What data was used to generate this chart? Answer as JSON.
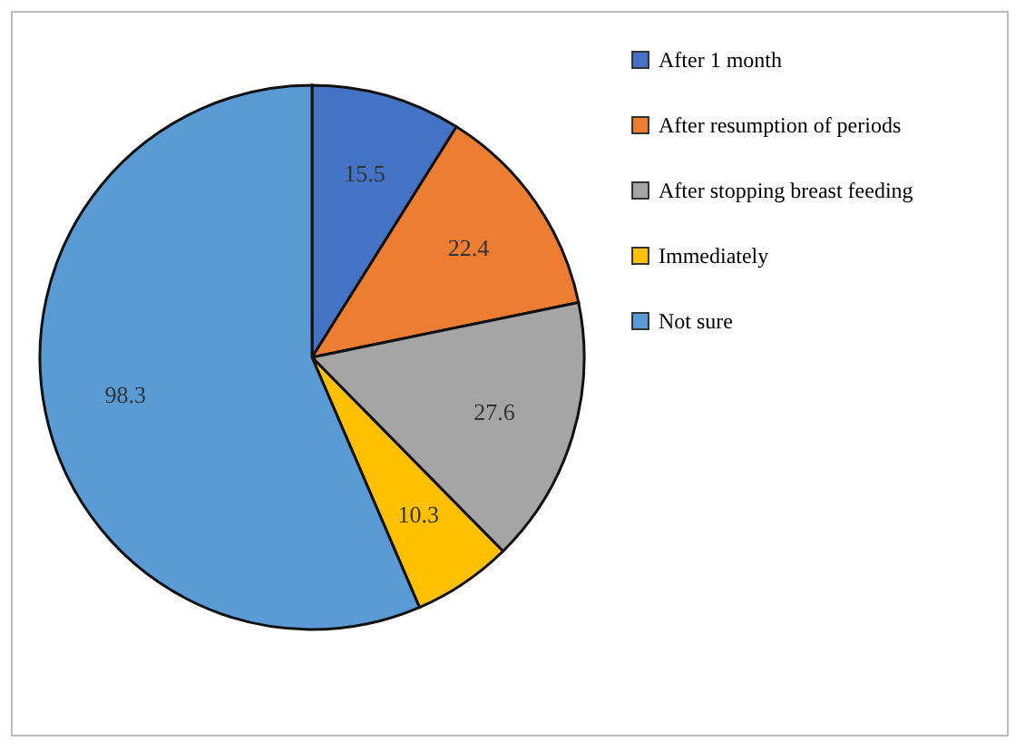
{
  "chart_data": {
    "type": "pie",
    "categories": [
      "After 1 month",
      "After resumption of periods",
      "After stopping breast feeding",
      "Immediately",
      "Not sure"
    ],
    "values": [
      15.5,
      22.4,
      27.6,
      10.3,
      98.3
    ],
    "colors": [
      "#4472c4",
      "#ed7d31",
      "#a5a5a5",
      "#ffc000",
      "#5b9bd5"
    ],
    "data_labels": true,
    "legend": "right"
  }
}
